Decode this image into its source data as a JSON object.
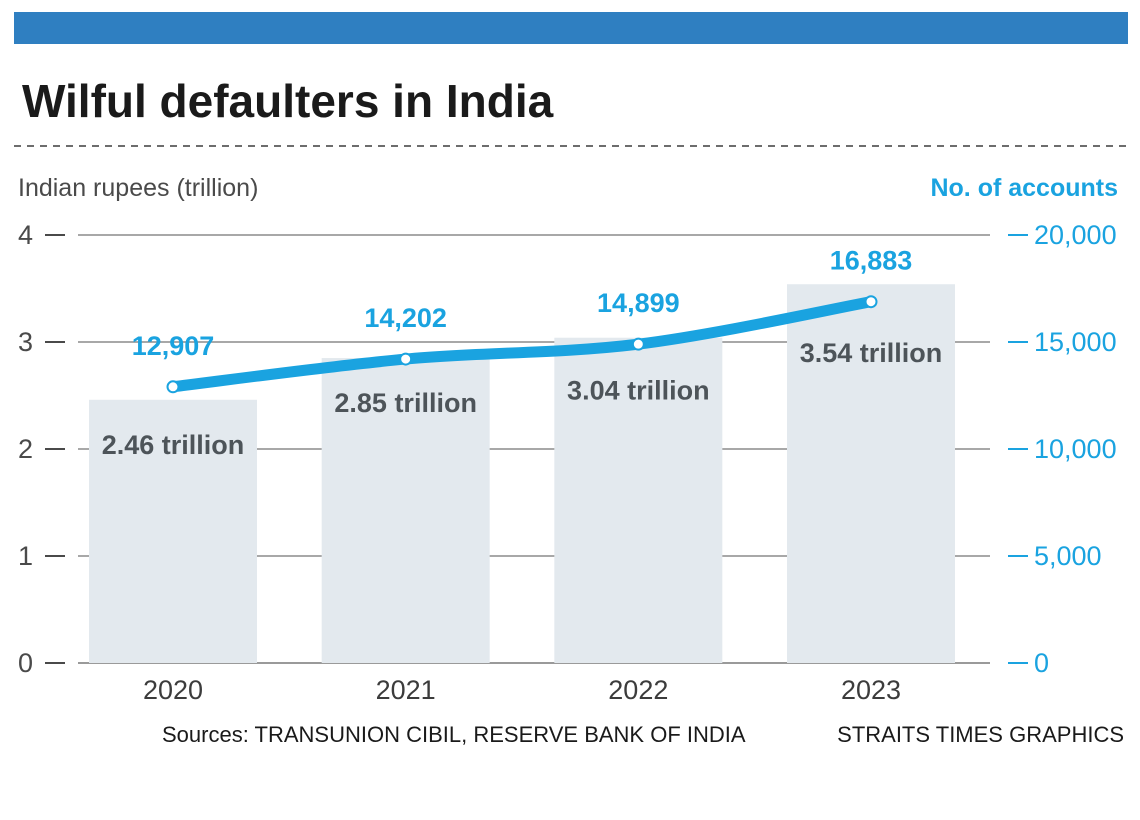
{
  "header": {
    "title": "Wilful defaulters in India"
  },
  "footer": {
    "sources": "Sources: TRANSUNION CIBIL, RESERVE BANK OF INDIA",
    "credit": "STRAITS TIMES GRAPHICS"
  },
  "colors": {
    "accent_bar": "#2f7fc1",
    "line": "#1aa3e0",
    "bar_fill": "#e3e9ee",
    "gridline": "#8c8c8c",
    "left_axis_text": "#4a4a4a",
    "right_axis_text": "#1aa3e0"
  },
  "chart_data": {
    "type": "bar",
    "title": "Wilful defaulters in India",
    "categories": [
      "2020",
      "2021",
      "2022",
      "2023"
    ],
    "ylabel_left": "Indian rupees (trillion)",
    "ylabel_right": "No. of accounts",
    "ylim_left": [
      0,
      4
    ],
    "ylim_right": [
      0,
      20000
    ],
    "left_ticks": [
      {
        "value": 0,
        "label": "0"
      },
      {
        "value": 1,
        "label": "1"
      },
      {
        "value": 2,
        "label": "2"
      },
      {
        "value": 3,
        "label": "3"
      },
      {
        "value": 4,
        "label": "4"
      }
    ],
    "right_ticks": [
      {
        "value": 0,
        "label": "0"
      },
      {
        "value": 5000,
        "label": "5,000"
      },
      {
        "value": 10000,
        "label": "10,000"
      },
      {
        "value": 15000,
        "label": "15,000"
      },
      {
        "value": 20000,
        "label": "20,000"
      }
    ],
    "series": [
      {
        "name": "Amount (Indian rupees, trillion)",
        "type": "bar",
        "axis": "left",
        "values": [
          2.46,
          2.85,
          3.04,
          3.54
        ],
        "labels": [
          "2.46 trillion",
          "2.85 trillion",
          "3.04 trillion",
          "3.54 trillion"
        ]
      },
      {
        "name": "No. of accounts",
        "type": "line",
        "axis": "right",
        "values": [
          12907,
          14202,
          14899,
          16883
        ],
        "labels": [
          "12,907",
          "14,202",
          "14,899",
          "16,883"
        ]
      }
    ],
    "grid": true
  }
}
